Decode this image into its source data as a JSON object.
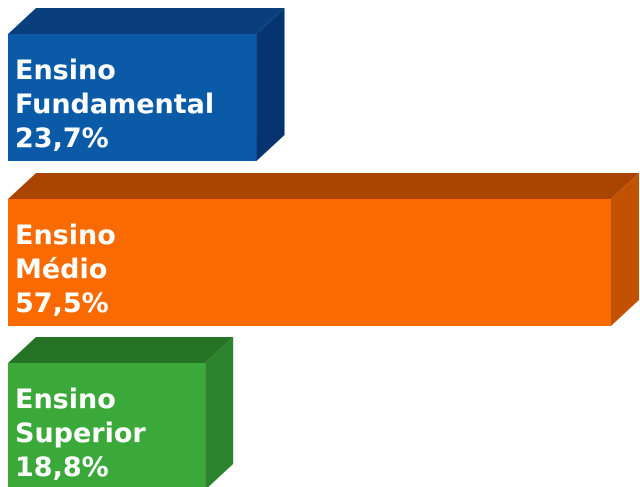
{
  "chart_data": {
    "type": "bar",
    "orientation": "horizontal",
    "style": "3d",
    "title": "",
    "xlabel": "",
    "ylabel": "",
    "grid": false,
    "legend": "none",
    "categories": [
      "Ensino Fundamental",
      "Ensino Médio",
      "Ensino Superior"
    ],
    "values": [
      23.7,
      57.5,
      18.8
    ],
    "unit": "%",
    "xlim": [
      0,
      57.5
    ],
    "bars": [
      {
        "label_lines": [
          "Ensino",
          "Fundamental",
          "23,7%"
        ],
        "value": 23.7,
        "colors": {
          "front": "#0a5aa8",
          "top": "#083f7c",
          "side": "#053470"
        }
      },
      {
        "label_lines": [
          "Ensino",
          "Médio",
          "57,5%"
        ],
        "value": 57.5,
        "colors": {
          "front": "#f96a00",
          "top": "#a84400",
          "side": "#c25200"
        }
      },
      {
        "label_lines": [
          "Ensino",
          "Superior",
          "18,8%"
        ],
        "value": 18.8,
        "colors": {
          "front": "#3aa93a",
          "top": "#257325",
          "side": "#2d832d"
        }
      }
    ]
  }
}
